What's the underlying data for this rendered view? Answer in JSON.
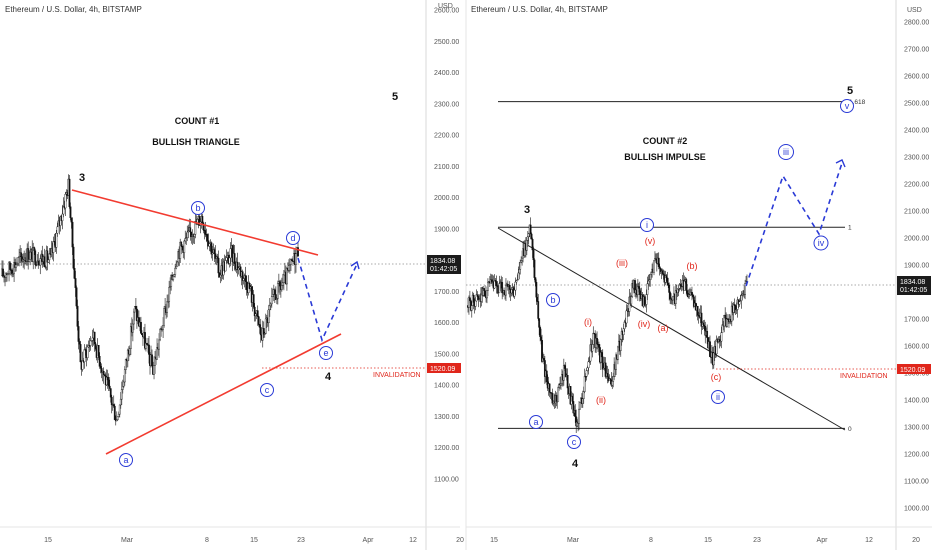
{
  "chart_data": [
    {
      "type": "candlestick",
      "title": "Ethereum / U.S. Dollar, 4h, BITSTAMP",
      "currency": "USD",
      "heading_line1": "COUNT #1",
      "heading_line2": "BULLISH TRIANGLE",
      "ylim": [
        1000,
        2600
      ],
      "y_ticks": [
        "2600.00",
        "2500.00",
        "2400.00",
        "2300.00",
        "2200.00",
        "2100.00",
        "2000.00",
        "1900.00",
        "1800.00",
        "1700.00",
        "1600.00",
        "1500.00",
        "1400.00",
        "1300.00",
        "1200.00",
        "1100.00"
      ],
      "x_ticks": [
        "15",
        "Mar",
        "8",
        "15",
        "23",
        "Apr",
        "12",
        "20"
      ],
      "last_price": "1834.08",
      "countdown": "01:42:05",
      "invalidation_price": "1520.09",
      "invalidation_label": "INVALIDATION",
      "price_anchors": [
        [
          "Feb 9",
          1750
        ],
        [
          "Feb 13",
          1820
        ],
        [
          "Feb 17",
          1800
        ],
        [
          "Feb 20",
          2040
        ],
        [
          "Feb 22",
          1460
        ],
        [
          "Feb 24",
          1560
        ],
        [
          "Feb 28",
          1290
        ],
        [
          "Mar 3",
          1640
        ],
        [
          "Mar 6",
          1450
        ],
        [
          "Mar 10",
          1820
        ],
        [
          "Mar 14",
          1940
        ],
        [
          "Mar 17",
          1760
        ],
        [
          "Mar 19",
          1820
        ],
        [
          "Mar 22",
          1710
        ],
        [
          "Mar 24",
          1550
        ],
        [
          "Mar 26",
          1680
        ],
        [
          "Mar 28",
          1740
        ],
        [
          "Mar 30",
          1834
        ]
      ],
      "wave_labels": {
        "three": "3",
        "four": "4",
        "five": "5",
        "a": "a",
        "b": "b",
        "c": "c",
        "d": "d",
        "e": "e"
      }
    },
    {
      "type": "candlestick",
      "title": "Ethereum / U.S. Dollar, 4h, BITSTAMP",
      "currency": "USD",
      "heading_line1": "COUNT #2",
      "heading_line2": "BULLISH IMPULSE",
      "ylim": [
        1000,
        2800
      ],
      "y_ticks": [
        "2800.00",
        "2700.00",
        "2600.00",
        "2500.00",
        "2400.00",
        "2300.00",
        "2200.00",
        "2100.00",
        "2000.00",
        "1900.00",
        "1800.00",
        "1700.00",
        "1600.00",
        "1500.00",
        "1400.00",
        "1300.00",
        "1200.00",
        "1100.00",
        "1000.00"
      ],
      "x_ticks": [
        "15",
        "Mar",
        "8",
        "15",
        "23",
        "Apr",
        "12",
        "20"
      ],
      "last_price": "1834.08",
      "countdown": "01:42:05",
      "invalidation_price": "1520.09",
      "invalidation_label": "INVALIDATION",
      "fib_labels": {
        "top": "1.618",
        "one": "1",
        "zero": "0"
      },
      "fib_levels": {
        "top": 2505,
        "one": 2040,
        "zero": 1295
      },
      "price_anchors": [
        [
          "Feb 9",
          1750
        ],
        [
          "Feb 13",
          1820
        ],
        [
          "Feb 17",
          1800
        ],
        [
          "Feb 20",
          2040
        ],
        [
          "Feb 22",
          1560
        ],
        [
          "Feb 24",
          1370
        ],
        [
          "Feb 26",
          1520
        ],
        [
          "Feb 28",
          1300
        ],
        [
          "Mar 3",
          1640
        ],
        [
          "Mar 6",
          1450
        ],
        [
          "Mar 10",
          1830
        ],
        [
          "Mar 12",
          1760
        ],
        [
          "Mar 14",
          1940
        ],
        [
          "Mar 17",
          1770
        ],
        [
          "Mar 19",
          1830
        ],
        [
          "Mar 22",
          1700
        ],
        [
          "Mar 24",
          1550
        ],
        [
          "Mar 26",
          1690
        ],
        [
          "Mar 28",
          1740
        ],
        [
          "Mar 30",
          1834
        ]
      ],
      "wave_labels": {
        "three": "3",
        "four": "4",
        "five": "5",
        "a": "a",
        "b": "b",
        "c": "c",
        "i": "i",
        "ii": "ii",
        "iii": "iii",
        "iv": "iv",
        "v": "v",
        "r_i": "(i)",
        "r_ii": "(ii)",
        "r_iii": "(iii)",
        "r_iv": "(iv)",
        "r_v": "(v)",
        "r_a": "(a)",
        "r_b": "(b)",
        "r_c": "(c)"
      }
    }
  ]
}
